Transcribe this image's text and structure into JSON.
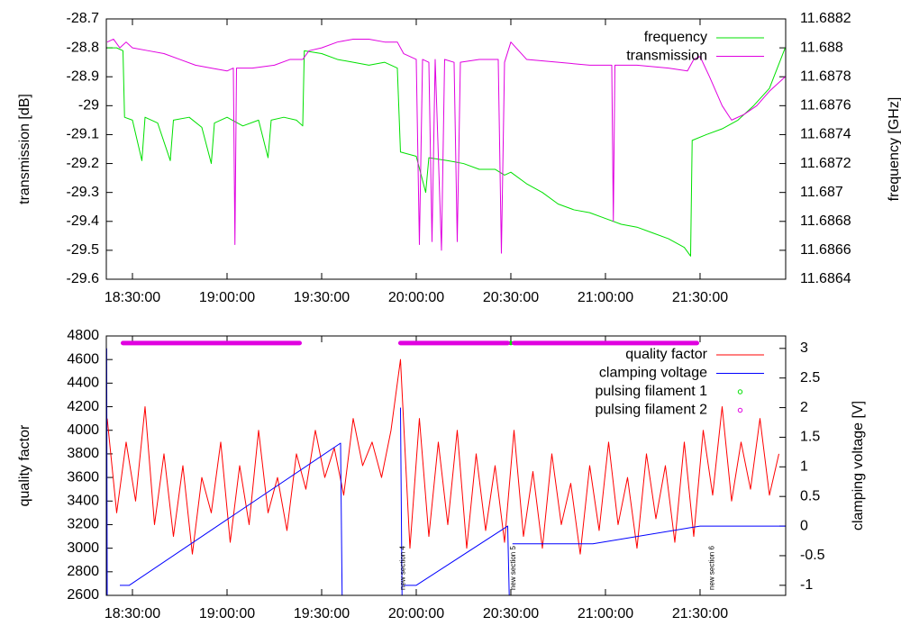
{
  "chart_data": [
    {
      "type": "line",
      "ylabel": "transmission [dB]",
      "y2label": "frequency [GHz]",
      "xlim": [
        "18:21:43",
        "21:57:09"
      ],
      "xticks": [
        "18:30:00",
        "19:00:00",
        "19:30:00",
        "20:00:00",
        "20:30:00",
        "21:00:00",
        "21:30:00"
      ],
      "ylim": [
        -29.6,
        -28.7
      ],
      "yticks": [
        -28.7,
        -28.8,
        -28.9,
        -29,
        -29.1,
        -29.2,
        -29.3,
        -29.4,
        -29.5,
        -29.6
      ],
      "y2lim": [
        11.6864,
        11.6882
      ],
      "y2ticks": [
        11.6882,
        11.688,
        11.6878,
        11.6876,
        11.6874,
        11.6872,
        11.687,
        11.6868,
        11.6866,
        11.6864
      ],
      "legend": "top right",
      "series": [
        {
          "name": "frequency",
          "color": "#00e000",
          "axis": "y2",
          "style": "lines",
          "x": [
            "18:22:00",
            "18:25:00",
            "18:27:00",
            "18:27:30",
            "18:30:00",
            "18:33:00",
            "18:34:00",
            "18:38:00",
            "18:42:00",
            "18:43:00",
            "18:48:00",
            "18:52:00",
            "18:55:00",
            "18:56:00",
            "19:00:00",
            "19:05:00",
            "19:10:00",
            "19:13:00",
            "19:14:00",
            "19:18:00",
            "19:22:00",
            "19:24:00",
            "19:24:30",
            "19:30:00",
            "19:35:00",
            "19:40:00",
            "19:45:00",
            "19:50:00",
            "19:54:00",
            "19:55:00",
            "20:00:00",
            "20:03:00",
            "20:04:00",
            "20:10:00",
            "20:15:00",
            "20:20:00",
            "20:25:00",
            "20:28:00",
            "20:30:00",
            "20:35:00",
            "20:40:00",
            "20:45:00",
            "20:50:00",
            "20:55:00",
            "21:00:00",
            "21:05:00",
            "21:10:00",
            "21:15:00",
            "21:20:00",
            "21:25:00",
            "21:27:00",
            "21:27:30",
            "21:32:00",
            "21:37:00",
            "21:42:00",
            "21:47:00",
            "21:52:00",
            "21:57:00"
          ],
          "values": [
            11.688,
            11.688,
            11.68798,
            11.68752,
            11.6875,
            11.68722,
            11.68752,
            11.68748,
            11.68722,
            11.6875,
            11.68752,
            11.68745,
            11.6872,
            11.68748,
            11.68752,
            11.68746,
            11.6875,
            11.68724,
            11.6875,
            11.68752,
            11.6875,
            11.68746,
            11.68798,
            11.68796,
            11.68792,
            11.6879,
            11.68788,
            11.6879,
            11.68786,
            11.68728,
            11.68725,
            11.687,
            11.68724,
            11.68722,
            11.6872,
            11.68716,
            11.68716,
            11.68712,
            11.68714,
            11.68706,
            11.687,
            11.68692,
            11.68688,
            11.68686,
            11.68682,
            11.68678,
            11.68676,
            11.68672,
            11.68668,
            11.68662,
            11.68656,
            11.68736,
            11.6874,
            11.68744,
            11.6875,
            11.6876,
            11.68772,
            11.688
          ]
        },
        {
          "name": "transmission",
          "color": "#e000e0",
          "axis": "y",
          "style": "lines",
          "x": [
            "18:22:00",
            "18:24:00",
            "18:26:00",
            "18:28:00",
            "18:30:00",
            "18:35:00",
            "18:40:00",
            "18:45:00",
            "18:50:00",
            "18:55:00",
            "19:00:00",
            "19:02:00",
            "19:02:30",
            "19:03:00",
            "19:08:00",
            "19:15:00",
            "19:20:00",
            "19:24:00",
            "19:26:00",
            "19:30:00",
            "19:35:00",
            "19:40:00",
            "19:45:00",
            "19:50:00",
            "19:54:00",
            "19:56:00",
            "20:00:00",
            "20:01:00",
            "20:02:00",
            "20:04:00",
            "20:05:00",
            "20:06:00",
            "20:08:00",
            "20:09:00",
            "20:12:00",
            "20:13:00",
            "20:14:00",
            "20:20:00",
            "20:26:00",
            "20:27:00",
            "20:28:00",
            "20:30:00",
            "20:35:00",
            "20:45:00",
            "20:55:00",
            "21:02:00",
            "21:02:30",
            "21:03:00",
            "21:10:00",
            "21:20:00",
            "21:26:00",
            "21:28:00",
            "21:30:00",
            "21:33:00",
            "21:37:00",
            "21:40:00",
            "21:44:00",
            "21:48:00",
            "21:52:00",
            "21:57:00"
          ],
          "values": [
            -28.78,
            -28.77,
            -28.8,
            -28.78,
            -28.8,
            -28.81,
            -28.82,
            -28.84,
            -28.86,
            -28.87,
            -28.88,
            -28.87,
            -29.48,
            -28.87,
            -28.87,
            -28.86,
            -28.84,
            -28.84,
            -28.81,
            -28.8,
            -28.78,
            -28.77,
            -28.77,
            -28.78,
            -28.78,
            -28.82,
            -28.84,
            -29.48,
            -28.84,
            -28.85,
            -29.47,
            -28.84,
            -29.5,
            -28.84,
            -28.85,
            -29.47,
            -28.85,
            -28.84,
            -28.84,
            -29.51,
            -28.85,
            -28.78,
            -28.84,
            -28.85,
            -28.86,
            -28.86,
            -29.4,
            -28.86,
            -28.86,
            -28.87,
            -28.88,
            -28.84,
            -28.83,
            -28.9,
            -29,
            -29.05,
            -29.03,
            -29,
            -28.95,
            -28.9
          ]
        }
      ]
    },
    {
      "type": "line",
      "ylabel": "quality factor",
      "y2label": "clamping voltage [V]",
      "xlim": [
        "18:21:43",
        "21:57:09"
      ],
      "xticks": [
        "18:30:00",
        "19:00:00",
        "19:30:00",
        "20:00:00",
        "20:30:00",
        "21:00:00",
        "21:30:00"
      ],
      "ylim": [
        2600,
        4800
      ],
      "yticks": [
        4800,
        4600,
        4400,
        4200,
        4000,
        3800,
        3600,
        3400,
        3200,
        3000,
        2800,
        2600
      ],
      "y2lim": [
        -1.17,
        3.21
      ],
      "y2ticks": [
        3,
        2.5,
        2,
        1.5,
        1,
        0.5,
        0,
        -0.5,
        -1
      ],
      "legend": "top right",
      "annotations": [
        {
          "text": "new section 4",
          "x": "19:55:00"
        },
        {
          "text": "new section 5",
          "x": "20:30:00"
        },
        {
          "text": "new section 6",
          "x": "21:33:00"
        }
      ],
      "series": [
        {
          "name": "quality factor",
          "color": "#ff0000",
          "axis": "y",
          "style": "lines",
          "x": [
            "18:22:00",
            "18:25:00",
            "18:28:00",
            "18:31:00",
            "18:34:00",
            "18:37:00",
            "18:40:00",
            "18:43:00",
            "18:46:00",
            "18:49:00",
            "18:52:00",
            "18:55:00",
            "18:58:00",
            "19:01:00",
            "19:04:00",
            "19:07:00",
            "19:10:00",
            "19:13:00",
            "19:16:00",
            "19:19:00",
            "19:22:00",
            "19:25:00",
            "19:28:00",
            "19:31:00",
            "19:34:00",
            "19:37:00",
            "19:40:00",
            "19:43:00",
            "19:46:00",
            "19:49:00",
            "19:52:00",
            "19:55:00",
            "19:58:00",
            "20:01:00",
            "20:04:00",
            "20:07:00",
            "20:10:00",
            "20:13:00",
            "20:16:00",
            "20:19:00",
            "20:22:00",
            "20:25:00",
            "20:28:00",
            "20:31:00",
            "20:34:00",
            "20:37:00",
            "20:40:00",
            "20:43:00",
            "20:46:00",
            "20:49:00",
            "20:52:00",
            "20:55:00",
            "20:58:00",
            "21:01:00",
            "21:04:00",
            "21:07:00",
            "21:10:00",
            "21:13:00",
            "21:16:00",
            "21:19:00",
            "21:22:00",
            "21:25:00",
            "21:28:00",
            "21:31:00",
            "21:34:00",
            "21:37:00",
            "21:40:00",
            "21:43:00",
            "21:46:00",
            "21:49:00",
            "21:52:00",
            "21:55:00"
          ],
          "values": [
            4100,
            3300,
            3900,
            3400,
            4200,
            3200,
            3800,
            3100,
            3700,
            2950,
            3600,
            3300,
            3900,
            3050,
            3700,
            3200,
            4000,
            3300,
            3600,
            3150,
            3800,
            3500,
            4000,
            3600,
            3850,
            3450,
            4100,
            3700,
            3900,
            3600,
            4000,
            4600,
            3000,
            4100,
            3100,
            3900,
            3200,
            4000,
            3000,
            3800,
            3150,
            3700,
            3050,
            4000,
            3100,
            3650,
            3000,
            3800,
            3200,
            3550,
            2950,
            3700,
            3150,
            3900,
            3200,
            3600,
            3000,
            3800,
            3250,
            3700,
            3050,
            3900,
            3100,
            4000,
            3450,
            4200,
            3400,
            3900,
            3500,
            4100,
            3450,
            3800
          ]
        },
        {
          "name": "clamping voltage",
          "color": "#0000ff",
          "axis": "y2",
          "style": "lines",
          "x": [
            "18:21:50",
            "18:22:00",
            "18:24:00",
            "18:26:00",
            "18:29:00",
            "19:36:00",
            "19:36:30",
            "19:45:00",
            "19:55:00",
            "19:55:30",
            "19:55:45",
            "19:56:00",
            "20:00:00",
            "20:29:00",
            "20:29:30",
            "20:30:00",
            "20:30:30",
            "20:56:00",
            "21:30:00",
            "21:57:00"
          ],
          "values": [
            3,
            -1.2,
            null,
            -1,
            -1,
            1.4,
            -1.2,
            null,
            2,
            -1.2,
            null,
            -1,
            -1,
            0,
            -1.2,
            null,
            -0.3,
            -0.3,
            0,
            0
          ]
        },
        {
          "name": "pulsing filament 1",
          "color": "#00e000",
          "axis": "y",
          "style": "points",
          "x": [
            "20:30:00"
          ],
          "values": [
            4740
          ]
        },
        {
          "name": "pulsing filament 2",
          "color": "#e000e0",
          "axis": "y",
          "style": "points",
          "x": [
            "18:27:00",
            "19:23:00",
            "19:24:00",
            "19:55:00",
            "20:29:00",
            "20:30:00",
            "20:31:00",
            "21:29:00"
          ],
          "values": [
            4740,
            4740,
            null,
            4740,
            4740,
            null,
            4740,
            4740
          ]
        }
      ]
    }
  ]
}
